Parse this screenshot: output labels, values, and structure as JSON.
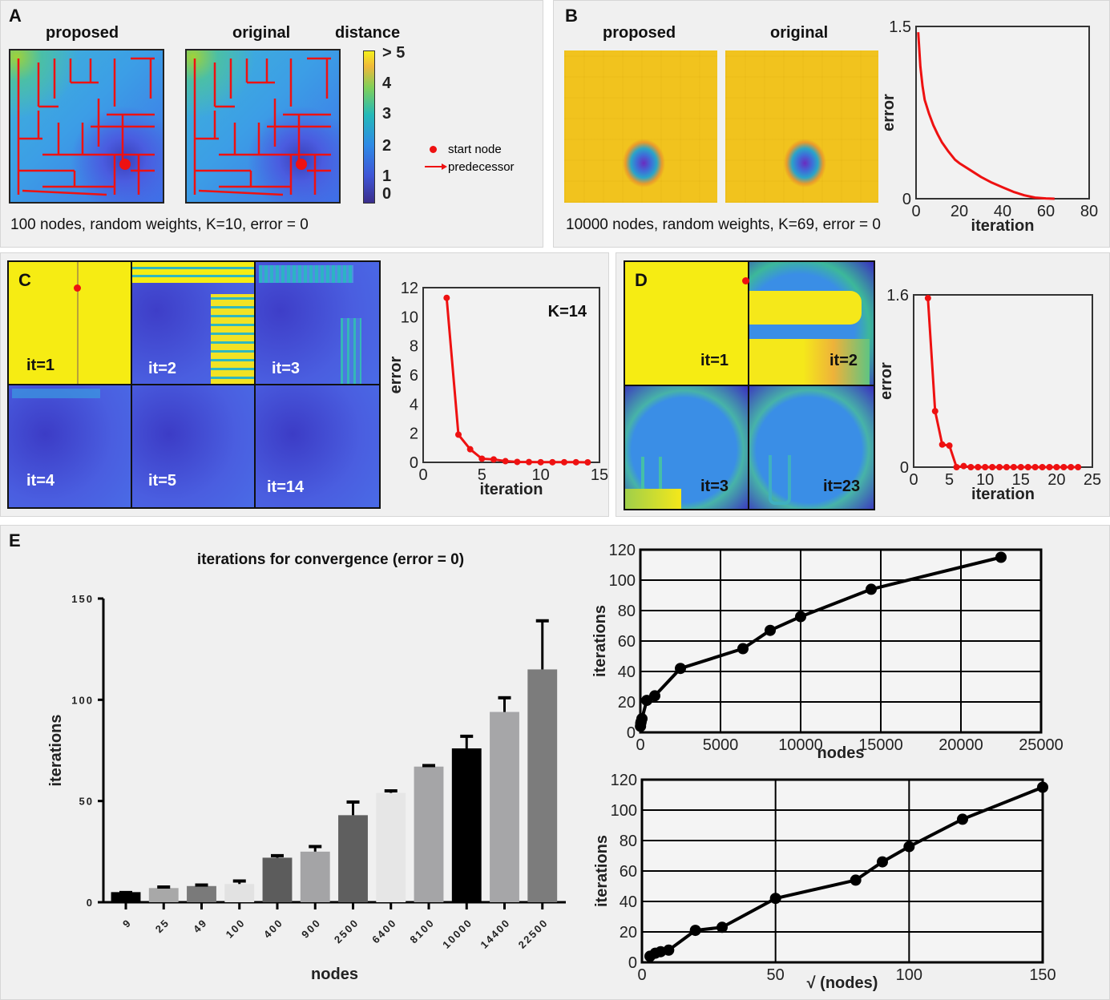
{
  "panels": {
    "A": {
      "label": "A",
      "titles": [
        "proposed",
        "original",
        "distance"
      ],
      "colorbar_ticks": [
        "> 5",
        "4",
        "3",
        "2",
        "1",
        "0"
      ],
      "legend": {
        "start_node": "start node",
        "predecessor": "predecessor"
      },
      "caption": "100 nodes, random weights, K=10, error = 0"
    },
    "B": {
      "label": "B",
      "titles": [
        "proposed",
        "original"
      ],
      "caption": "10000 nodes, random weights, K=69, error = 0"
    },
    "C": {
      "label": "C",
      "tiles": [
        "it=1",
        "it=2",
        "it=3",
        "it=4",
        "it=5",
        "it=14"
      ],
      "annotation": "K=14"
    },
    "D": {
      "label": "D",
      "tiles": [
        "it=1",
        "it=2",
        "it=3",
        "it=23"
      ]
    },
    "E": {
      "label": "E"
    }
  },
  "colors": {
    "red": "#ee1111",
    "black": "#000000"
  },
  "chart_data": [
    {
      "id": "B-error",
      "type": "line",
      "title": "",
      "xlabel": "iteration",
      "ylabel": "error",
      "xlim": [
        0,
        80
      ],
      "ylim": [
        0,
        1.5
      ],
      "xticks": [
        "0",
        "20",
        "40",
        "60",
        "80"
      ],
      "yticks": [
        "0",
        "1.5"
      ],
      "series": [
        {
          "name": "error",
          "color": "#ee1111",
          "x": [
            1,
            2,
            3,
            4,
            5,
            6,
            8,
            10,
            12,
            15,
            18,
            20,
            25,
            30,
            35,
            40,
            45,
            50,
            55,
            60,
            64
          ],
          "y": [
            1.45,
            1.15,
            0.98,
            0.86,
            0.8,
            0.74,
            0.64,
            0.56,
            0.49,
            0.41,
            0.34,
            0.31,
            0.25,
            0.19,
            0.14,
            0.1,
            0.06,
            0.03,
            0.01,
            0.003,
            0
          ]
        }
      ]
    },
    {
      "id": "C-error",
      "type": "line",
      "title": "",
      "annotation": "K=14",
      "xlabel": "iteration",
      "ylabel": "error",
      "xlim": [
        0,
        15
      ],
      "ylim": [
        0,
        12
      ],
      "xticks": [
        "0",
        "5",
        "10",
        "15"
      ],
      "yticks": [
        "0",
        "2",
        "4",
        "6",
        "8",
        "10",
        "12"
      ],
      "series": [
        {
          "name": "error",
          "color": "#ee1111",
          "markers": true,
          "x": [
            2,
            3,
            4,
            5,
            6,
            7,
            8,
            9,
            10,
            11,
            12,
            13,
            14
          ],
          "y": [
            11.3,
            1.9,
            0.9,
            0.25,
            0.2,
            0.08,
            0.03,
            0.02,
            0.01,
            0.01,
            0.01,
            0.01,
            0
          ]
        }
      ]
    },
    {
      "id": "D-error",
      "type": "line",
      "title": "",
      "xlabel": "iteration",
      "ylabel": "error",
      "xlim": [
        0,
        25
      ],
      "ylim": [
        0,
        1.6
      ],
      "xticks": [
        "0",
        "5",
        "10",
        "15",
        "20",
        "25"
      ],
      "yticks": [
        "0",
        "1.6"
      ],
      "series": [
        {
          "name": "error",
          "color": "#ee1111",
          "markers": true,
          "x": [
            2,
            3,
            4,
            5,
            6,
            7,
            8,
            9,
            10,
            11,
            12,
            13,
            14,
            15,
            16,
            17,
            18,
            19,
            20,
            21,
            22,
            23
          ],
          "y": [
            1.57,
            0.52,
            0.21,
            0.2,
            0.0,
            0.01,
            0,
            0,
            0,
            0,
            0,
            0,
            0,
            0,
            0,
            0,
            0,
            0,
            0,
            0,
            0,
            0
          ]
        }
      ]
    },
    {
      "id": "E-bar",
      "type": "bar",
      "title": "iterations for convergence (error = 0)",
      "xlabel": "nodes",
      "ylabel": "iterations",
      "ylim": [
        0,
        150
      ],
      "yticks": [
        "0",
        "50",
        "100",
        "150"
      ],
      "categories": [
        "9",
        "25",
        "49",
        "100",
        "400",
        "900",
        "2500",
        "6400",
        "8100",
        "10000",
        "14400",
        "22500"
      ],
      "values": [
        5,
        7,
        8,
        9,
        22,
        25,
        43,
        54,
        67,
        76,
        94,
        115
      ],
      "errors": [
        0,
        0.5,
        0.5,
        1.5,
        1,
        2.5,
        6.5,
        1,
        0.5,
        6,
        7,
        24
      ],
      "bar_colors": [
        "#000000",
        "#a8a8a8",
        "#7a7a7a",
        "#e2e2e2",
        "#5c5c5c",
        "#a4a4a6",
        "#5f5f5f",
        "#e6e6e6",
        "#a5a5a7",
        "#000000",
        "#a6a6a8",
        "#7c7c7c"
      ]
    },
    {
      "id": "E-line-nodes",
      "type": "line",
      "title": "",
      "xlabel": "nodes",
      "ylabel": "iterations",
      "xlim": [
        0,
        25000
      ],
      "ylim": [
        0,
        120
      ],
      "xticks": [
        "0",
        "5000",
        "10000",
        "15000",
        "20000",
        "25000"
      ],
      "yticks": [
        "0",
        "20",
        "40",
        "60",
        "80",
        "100",
        "120"
      ],
      "grid": true,
      "series": [
        {
          "name": "iterations",
          "color": "#000000",
          "markers": true,
          "x": [
            9,
            25,
            49,
            100,
            400,
            900,
            2500,
            6400,
            8100,
            10000,
            14400,
            22500
          ],
          "y": [
            4,
            6,
            7,
            9,
            21,
            24,
            42,
            55,
            67,
            76,
            94,
            115
          ]
        }
      ]
    },
    {
      "id": "E-line-sqrt",
      "type": "line",
      "title": "",
      "xlabel": "√ (nodes)",
      "ylabel": "iterations",
      "xlim": [
        0,
        150
      ],
      "ylim": [
        0,
        120
      ],
      "xticks": [
        "0",
        "50",
        "100",
        "150"
      ],
      "yticks": [
        "0",
        "20",
        "40",
        "60",
        "80",
        "100",
        "120"
      ],
      "grid": true,
      "series": [
        {
          "name": "iterations",
          "color": "#000000",
          "markers": true,
          "x": [
            3,
            5,
            7,
            10,
            20,
            30,
            50,
            80,
            90,
            100,
            120,
            150
          ],
          "y": [
            4,
            6,
            7,
            8,
            21,
            23,
            42,
            54,
            66,
            76,
            94,
            115
          ]
        }
      ]
    }
  ]
}
